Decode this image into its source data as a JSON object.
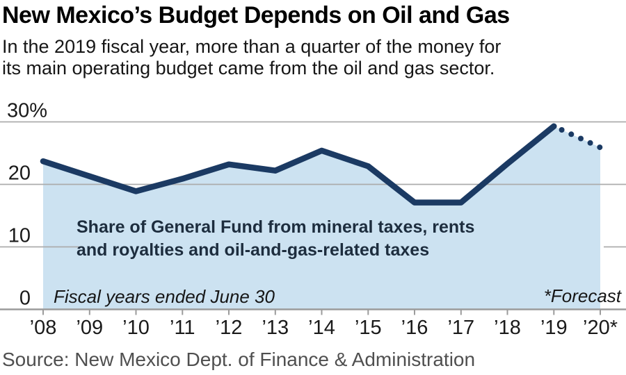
{
  "header": {
    "title": "New Mexico’s Budget Depends on Oil and Gas",
    "subtitle": "In the 2019 fiscal year, more than a quarter of the money for\nits main operating budget came from the oil and gas sector."
  },
  "source": "Source: New Mexico Dept. of Finance & Administration",
  "chart_data": {
    "type": "area",
    "title": "New Mexico’s Budget Depends on Oil and Gas",
    "categories": [
      "’08",
      "’09",
      "’10",
      "’11",
      "’12",
      "’13",
      "’14",
      "’15",
      "’16",
      "’17",
      "’18",
      "’19",
      "’20*"
    ],
    "values": [
      23.7,
      21.3,
      18.9,
      20.9,
      23.2,
      22.2,
      25.4,
      22.9,
      17.1,
      17.1,
      23.3,
      29.3,
      25.9
    ],
    "last_point_is_forecast": true,
    "forecast_dot_count": 5,
    "units": "percent",
    "xlabel": "",
    "ylabel": "",
    "ylim": [
      0,
      30
    ],
    "y_ticks": [
      {
        "value": 30,
        "label": "30%"
      },
      {
        "value": 20,
        "label": "20"
      },
      {
        "value": 10,
        "label": "10"
      },
      {
        "value": 0,
        "label": "0"
      }
    ],
    "grid": "horizontal",
    "legend": "none",
    "annotation": {
      "line1": "Share of General Fund from mineral taxes, rents",
      "line2": "and royalties and oil-and-gas-related taxes"
    },
    "footnote_left": "Fiscal years ended June 30",
    "footnote_right": "*Forecast",
    "colors": {
      "line": "#1b3a63",
      "fill": "#cce2f1",
      "grid": "#ababab",
      "axis": "#9b9b9b",
      "tick_text": "#1a1a1a",
      "annotation": "#1d2d3e",
      "source": "#4f4f4f"
    }
  }
}
